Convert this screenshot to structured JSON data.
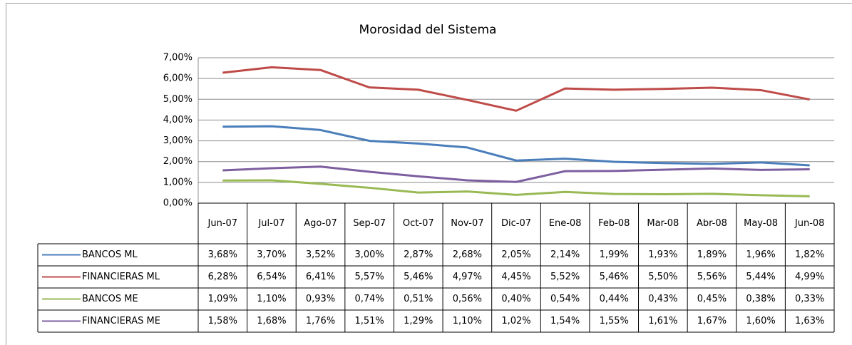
{
  "chart_data": {
    "type": "line",
    "title": "Morosidad del Sistema",
    "categories": [
      "Jun-07",
      "Jul-07",
      "Ago-07",
      "Sep-07",
      "Oct-07",
      "Nov-07",
      "Dic-07",
      "Ene-08",
      "Feb-08",
      "Mar-08",
      "Abr-08",
      "May-08",
      "Jun-08"
    ],
    "series": [
      {
        "name": "BANCOS ML",
        "color": "#4a7ebb",
        "values": [
          3.68,
          3.7,
          3.52,
          3.0,
          2.87,
          2.68,
          2.05,
          2.14,
          1.99,
          1.93,
          1.89,
          1.96,
          1.82
        ],
        "value_labels": [
          "3,68%",
          "3,70%",
          "3,52%",
          "3,00%",
          "2,87%",
          "2,68%",
          "2,05%",
          "2,14%",
          "1,99%",
          "1,93%",
          "1,89%",
          "1,96%",
          "1,82%"
        ]
      },
      {
        "name": "FINANCIERAS ML",
        "color": "#be4b48",
        "values": [
          6.28,
          6.54,
          6.41,
          5.57,
          5.46,
          4.97,
          4.45,
          5.52,
          5.46,
          5.5,
          5.56,
          5.44,
          4.99
        ],
        "value_labels": [
          "6,28%",
          "6,54%",
          "6,41%",
          "5,57%",
          "5,46%",
          "4,97%",
          "4,45%",
          "5,52%",
          "5,46%",
          "5,50%",
          "5,56%",
          "5,44%",
          "4,99%"
        ]
      },
      {
        "name": "BANCOS ME",
        "color": "#98b954",
        "values": [
          1.09,
          1.1,
          0.93,
          0.74,
          0.51,
          0.56,
          0.4,
          0.54,
          0.44,
          0.43,
          0.45,
          0.38,
          0.33
        ],
        "value_labels": [
          "1,09%",
          "1,10%",
          "0,93%",
          "0,74%",
          "0,51%",
          "0,56%",
          "0,40%",
          "0,54%",
          "0,44%",
          "0,43%",
          "0,45%",
          "0,38%",
          "0,33%"
        ]
      },
      {
        "name": "FINANCIERAS ME",
        "color": "#7d5fa0",
        "values": [
          1.58,
          1.68,
          1.76,
          1.51,
          1.29,
          1.1,
          1.02,
          1.54,
          1.55,
          1.61,
          1.67,
          1.6,
          1.63
        ],
        "value_labels": [
          "1,58%",
          "1,68%",
          "1,76%",
          "1,51%",
          "1,29%",
          "1,10%",
          "1,02%",
          "1,54%",
          "1,55%",
          "1,61%",
          "1,67%",
          "1,60%",
          "1,63%"
        ]
      }
    ],
    "ylim": [
      0,
      7
    ],
    "yticks": [
      {
        "value": 0,
        "label": "0,00%"
      },
      {
        "value": 1,
        "label": "1,00%"
      },
      {
        "value": 2,
        "label": "2,00%"
      },
      {
        "value": 3,
        "label": "3,00%"
      },
      {
        "value": 4,
        "label": "4,00%"
      },
      {
        "value": 5,
        "label": "5,00%"
      },
      {
        "value": 6,
        "label": "6,00%"
      },
      {
        "value": 7,
        "label": "7,00%"
      }
    ],
    "grid": true
  }
}
